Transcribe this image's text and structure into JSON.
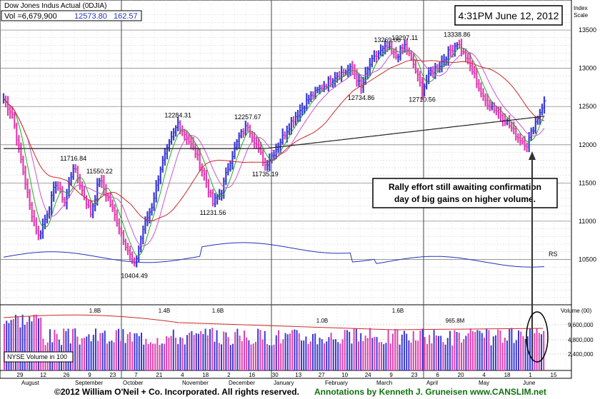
{
  "header": {
    "title": "Dow Jones Indus Actual  (0DJIA)",
    "volume_text": "Vol =6,679,900",
    "last_price": "12573.80",
    "net_change": "162.57",
    "timestamp": "4:31PM June 12, 2012",
    "scale_label_1": "Index",
    "scale_label_2": "Scale"
  },
  "annotation": {
    "line1": "Rally effort still awaiting confirmation",
    "line2": "day of big gains on higher volume."
  },
  "volume_panel": {
    "legend": "NYSE Volume in 100",
    "axis_title": "Volume (00)",
    "ticks": [
      "9,600,000",
      "4,800,000",
      "2,400,000"
    ],
    "labels": [
      "1.8B",
      "1.4B",
      "1.6B",
      "1.0B",
      "1.6B",
      "965.8M"
    ]
  },
  "footer": {
    "copyright": "©2012 William O'Neil + Co. Incorporated. All rights reserved.",
    "credit": "Annotations by Kenneth J. Gruneisen www.CANSLIM.net"
  },
  "colors": {
    "up_bar": "#3a3ad6",
    "down_bar": "#e040b0",
    "ma50": "#cc2a2a",
    "ma200": "#222222",
    "ma10": "#22aa22",
    "ma20": "#cc55cc",
    "rs_line": "#2233bb",
    "volume_ma": "#cc2a2a",
    "footer_credit": "#107010"
  },
  "chart_data": {
    "type": "line",
    "title": "Dow Jones Indus Actual (0DJIA)",
    "y_axis": {
      "ticks": [
        13500,
        13000,
        12500,
        12000,
        11500,
        11000,
        10500
      ],
      "ylim": [
        10000,
        13800
      ],
      "grid": true,
      "position": "right"
    },
    "x_axis": {
      "day_ticks": [
        "29",
        "12",
        "26",
        "9",
        "23",
        "7",
        "21",
        "4",
        "18",
        "2",
        "16",
        "30",
        "13",
        "27",
        "10",
        "24",
        "9",
        "23",
        "6",
        "20",
        "4",
        "18",
        "1",
        "15"
      ],
      "months": [
        "August",
        "September",
        "October",
        "November",
        "December",
        "January",
        "February",
        "March",
        "April",
        "May",
        "June"
      ]
    },
    "series": [
      {
        "name": "Price",
        "values": [
          12600,
          12400,
          11800,
          11200,
          10800,
          11100,
          11500,
          11250,
          11716.84,
          11400,
          11100,
          11550.22,
          11300,
          11000,
          10700,
          10404.49,
          10900,
          11200,
          11700,
          12000,
          12284.31,
          12100,
          11900,
          11600,
          11231.56,
          11400,
          11800,
          12100,
          12257.67,
          12000,
          11735.19,
          11900,
          12100,
          12300,
          12450,
          12600,
          12700,
          12800,
          12900,
          12950,
          13000,
          12734.86,
          13050,
          13200,
          13269.06,
          13150,
          13297.11,
          13050,
          12710.56,
          12950,
          13050,
          13200,
          13338.86,
          13150,
          12900,
          12600,
          12500,
          12400,
          12250,
          12100,
          12000,
          12300,
          12573.8
        ]
      }
    ],
    "point_labels": [
      {
        "text": "11716.84",
        "value": 11716.84
      },
      {
        "text": "11550.22",
        "value": 11550.22
      },
      {
        "text": "10404.49",
        "value": 10404.49
      },
      {
        "text": "12284.31",
        "value": 12284.31
      },
      {
        "text": "11231.56",
        "value": 11231.56
      },
      {
        "text": "12257.67",
        "value": 12257.67
      },
      {
        "text": "11735.19",
        "value": 11735.19
      },
      {
        "text": "12734.86",
        "value": 12734.86
      },
      {
        "text": "13269.06",
        "value": 13269.06
      },
      {
        "text": "13297.11",
        "value": 13297.11
      },
      {
        "text": "12710.56",
        "value": 12710.56
      },
      {
        "text": "13338.86",
        "value": 13338.86
      }
    ],
    "rs_label": "RS"
  }
}
